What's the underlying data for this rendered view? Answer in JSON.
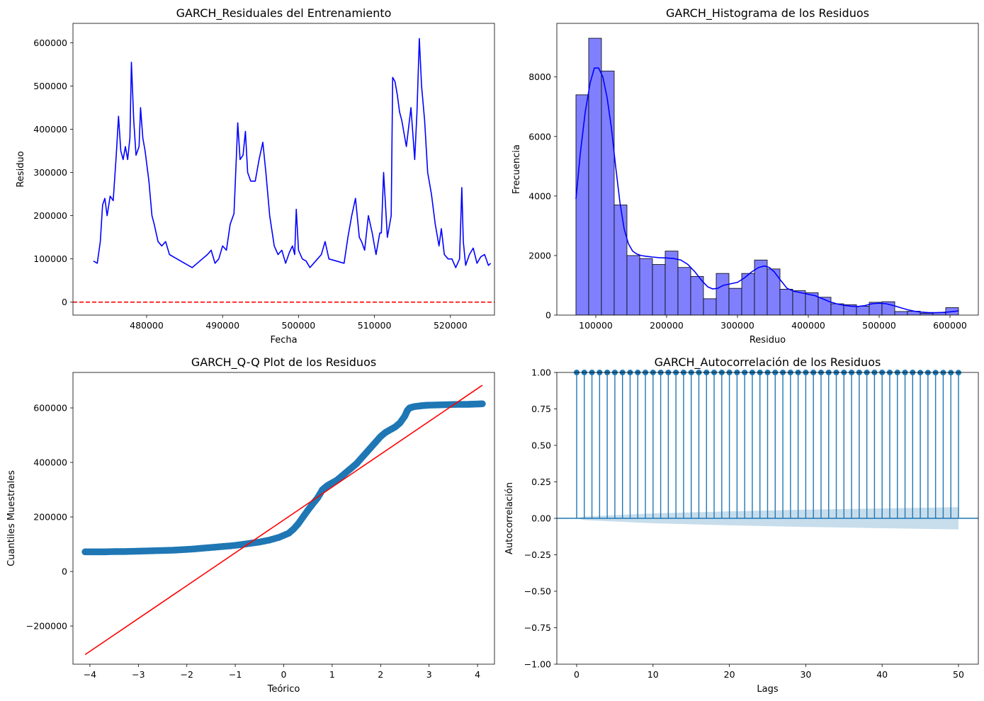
{
  "chart_data": [
    {
      "type": "line",
      "title": "GARCH_Residuales del Entrenamiento",
      "xlabel": "Fecha",
      "ylabel": "Residuo",
      "xlim": [
        470300,
        525800
      ],
      "ylim": [
        -30000,
        645000
      ],
      "xticks": [
        480000,
        490000,
        500000,
        510000,
        520000
      ],
      "yticks": [
        0,
        100000,
        200000,
        300000,
        400000,
        500000,
        600000
      ],
      "series": [
        {
          "color": "#0000ff",
          "x": [
            473000,
            473500,
            473900,
            474200,
            474500,
            474800,
            475200,
            475600,
            476000,
            476300,
            476600,
            476900,
            477200,
            477500,
            477800,
            478000,
            478300,
            478600,
            479000,
            479200,
            479500,
            479800,
            480300,
            480700,
            481000,
            481500,
            482000,
            482500,
            483000,
            484000,
            485000,
            486000,
            487000,
            488000,
            488500,
            489000,
            489500,
            490000,
            490500,
            491000,
            491500,
            491800,
            492000,
            492300,
            492700,
            493000,
            493300,
            493700,
            494300,
            494800,
            495300,
            495700,
            496200,
            496800,
            497300,
            497800,
            498300,
            498800,
            499200,
            499500,
            499700,
            500000,
            500500,
            501000,
            501500,
            502000,
            502500,
            503000,
            503500,
            504000,
            505000,
            506000,
            506500,
            507000,
            507500,
            508000,
            508300,
            508700,
            509200,
            509700,
            510200,
            510700,
            510900,
            511200,
            511700,
            512200,
            512400,
            512700,
            513000,
            513300,
            513600,
            514200,
            514800,
            515300,
            515600,
            515900,
            516200,
            516600,
            517000,
            517500,
            518000,
            518500,
            518800,
            519200,
            519700,
            520200,
            520700,
            521200,
            521500,
            521700,
            522000,
            522500,
            523000,
            523500,
            524000,
            524500,
            525000,
            525300
          ],
          "y": [
            95000,
            90000,
            140000,
            225000,
            240000,
            200000,
            245000,
            235000,
            340000,
            430000,
            350000,
            330000,
            360000,
            330000,
            380000,
            555000,
            420000,
            340000,
            360000,
            450000,
            380000,
            350000,
            280000,
            200000,
            180000,
            140000,
            130000,
            140000,
            110000,
            100000,
            90000,
            80000,
            95000,
            110000,
            120000,
            90000,
            100000,
            130000,
            120000,
            180000,
            205000,
            330000,
            415000,
            330000,
            340000,
            395000,
            300000,
            280000,
            280000,
            330000,
            370000,
            300000,
            200000,
            130000,
            110000,
            120000,
            90000,
            115000,
            130000,
            110000,
            215000,
            120000,
            100000,
            95000,
            80000,
            90000,
            100000,
            110000,
            140000,
            100000,
            95000,
            90000,
            150000,
            200000,
            240000,
            150000,
            140000,
            120000,
            200000,
            160000,
            110000,
            160000,
            160000,
            300000,
            150000,
            200000,
            520000,
            510000,
            480000,
            440000,
            420000,
            360000,
            450000,
            330000,
            440000,
            610000,
            500000,
            420000,
            300000,
            250000,
            180000,
            130000,
            170000,
            110000,
            100000,
            100000,
            80000,
            100000,
            265000,
            140000,
            85000,
            110000,
            125000,
            90000,
            105000,
            110000,
            85000,
            90000
          ]
        },
        {
          "name": "",
          "type": "hline",
          "color": "#ff0000",
          "style": "dashed",
          "y": 0
        }
      ]
    },
    {
      "type": "bar",
      "title": "GARCH_Histograma de los Residuos",
      "xlabel": "Residuo",
      "ylabel": "Frecuencia",
      "xlim": [
        45000,
        640000
      ],
      "ylim": [
        0,
        9800
      ],
      "xticks": [
        100000,
        200000,
        300000,
        400000,
        500000,
        600000
      ],
      "yticks": [
        0,
        2000,
        4000,
        6000,
        8000
      ],
      "bin_edges": [
        72000,
        90000,
        108000,
        126000,
        144000,
        162000,
        180000,
        198000,
        216000,
        234000,
        252000,
        270000,
        288000,
        306000,
        324000,
        342000,
        360000,
        378000,
        396000,
        414000,
        432000,
        450000,
        468000,
        486000,
        504000,
        522000,
        540000,
        558000,
        576000,
        594000,
        612000
      ],
      "values": [
        7400,
        9300,
        8200,
        3700,
        2000,
        1900,
        1700,
        2150,
        1600,
        1300,
        550,
        1400,
        900,
        1400,
        1850,
        1550,
        870,
        820,
        750,
        600,
        380,
        350,
        300,
        430,
        450,
        120,
        130,
        60,
        80,
        250
      ],
      "bar_color": "#8080ff",
      "kde": {
        "color": "#0000ff",
        "x": [
          72000,
          78000,
          85000,
          92000,
          98000,
          104000,
          110000,
          116000,
          122000,
          128000,
          134000,
          140000,
          146000,
          152000,
          158000,
          164000,
          170000,
          180000,
          190000,
          200000,
          210000,
          220000,
          230000,
          240000,
          250000,
          258000,
          265000,
          272000,
          280000,
          290000,
          300000,
          310000,
          320000,
          330000,
          338000,
          345000,
          352000,
          360000,
          370000,
          380000,
          390000,
          400000,
          410000,
          420000,
          430000,
          440000,
          450000,
          460000,
          470000,
          480000,
          490000,
          500000,
          510000,
          520000,
          530000,
          540000,
          550000,
          560000,
          570000,
          580000,
          590000,
          600000,
          612000
        ],
        "y": [
          3900,
          5400,
          6800,
          7800,
          8300,
          8300,
          8000,
          7300,
          6300,
          5000,
          3800,
          2900,
          2400,
          2150,
          2050,
          2000,
          1980,
          1950,
          1930,
          1920,
          1900,
          1850,
          1700,
          1450,
          1150,
          950,
          880,
          900,
          1000,
          1050,
          1100,
          1250,
          1450,
          1600,
          1650,
          1600,
          1450,
          1200,
          900,
          800,
          750,
          700,
          650,
          550,
          450,
          380,
          330,
          300,
          290,
          320,
          380,
          400,
          380,
          320,
          250,
          180,
          130,
          100,
          80,
          80,
          90,
          110,
          140
        ]
      }
    },
    {
      "type": "scatter",
      "title": "GARCH_Q-Q Plot de los Residuos",
      "xlabel": "Teórico",
      "ylabel": "Cuantiles Muestrales",
      "xlim": [
        -4.35,
        4.35
      ],
      "ylim": [
        -340000,
        730000
      ],
      "xticks": [
        -4,
        -3,
        -2,
        -1,
        0,
        1,
        2,
        3,
        4
      ],
      "yticks": [
        -200000,
        0,
        200000,
        400000,
        600000
      ],
      "point_color": "#1f77b4",
      "points": {
        "x": [
          -4.1,
          -3.9,
          -3.7,
          -3.5,
          -3.3,
          -3.1,
          -2.9,
          -2.7,
          -2.5,
          -2.3,
          -2.1,
          -1.9,
          -1.7,
          -1.5,
          -1.3,
          -1.1,
          -0.9,
          -0.7,
          -0.5,
          -0.3,
          -0.1,
          0.1,
          0.2,
          0.3,
          0.4,
          0.5,
          0.6,
          0.7,
          0.75,
          0.8,
          0.9,
          1.0,
          1.1,
          1.2,
          1.3,
          1.4,
          1.5,
          1.6,
          1.7,
          1.8,
          1.9,
          2.0,
          2.1,
          2.2,
          2.3,
          2.4,
          2.5,
          2.55,
          2.6,
          2.7,
          2.8,
          2.9,
          3.0,
          3.2,
          3.4,
          3.6,
          3.8,
          3.95,
          4.1
        ],
        "y": [
          72000,
          72000,
          72000,
          73000,
          73000,
          74000,
          75000,
          76000,
          77000,
          78000,
          80000,
          82000,
          85000,
          88000,
          91000,
          94000,
          98000,
          103000,
          108000,
          115000,
          125000,
          140000,
          155000,
          175000,
          200000,
          225000,
          248000,
          270000,
          285000,
          300000,
          315000,
          325000,
          335000,
          350000,
          365000,
          380000,
          395000,
          415000,
          435000,
          455000,
          475000,
          495000,
          510000,
          520000,
          530000,
          545000,
          570000,
          590000,
          600000,
          605000,
          607000,
          609000,
          610000,
          611000,
          612000,
          613000,
          613000,
          614000,
          615000
        ]
      },
      "reference_line": {
        "color": "#ff0000",
        "x": [
          -4.1,
          4.1
        ],
        "y": [
          -305000,
          683000
        ]
      }
    },
    {
      "type": "bar",
      "title": "GARCH_Autocorrelación de los Residuos",
      "xlabel": "Lags",
      "ylabel": "Autocorrelación",
      "xlim": [
        -2.6,
        52.6
      ],
      "ylim": [
        -1.0,
        1.0
      ],
      "xticks": [
        0,
        10,
        20,
        30,
        40,
        50
      ],
      "yticks": [
        -1.0,
        -0.75,
        -0.5,
        -0.25,
        0.0,
        0.25,
        0.5,
        0.75,
        1.0
      ],
      "lags": [
        0,
        1,
        2,
        3,
        4,
        5,
        6,
        7,
        8,
        9,
        10,
        11,
        12,
        13,
        14,
        15,
        16,
        17,
        18,
        19,
        20,
        21,
        22,
        23,
        24,
        25,
        26,
        27,
        28,
        29,
        30,
        31,
        32,
        33,
        34,
        35,
        36,
        37,
        38,
        39,
        40,
        41,
        42,
        43,
        44,
        45,
        46,
        47,
        48,
        49,
        50
      ],
      "values": [
        1.0,
        1.0,
        1.0,
        1.0,
        1.0,
        1.0,
        1.0,
        1.0,
        1.0,
        1.0,
        1.0,
        1.0,
        1.0,
        1.0,
        1.0,
        1.0,
        1.0,
        1.0,
        1.0,
        1.0,
        1.0,
        1.0,
        1.0,
        1.0,
        1.0,
        1.0,
        1.0,
        1.0,
        1.0,
        1.0,
        1.0,
        1.0,
        1.0,
        1.0,
        1.0,
        1.0,
        1.0,
        1.0,
        1.0,
        1.0,
        1.0,
        1.0,
        1.0,
        1.0,
        1.0,
        0.999,
        0.999,
        0.999,
        0.999,
        0.999,
        0.999
      ],
      "stem_color": "#1f77b4",
      "confidence_band": {
        "color": "#1f77b4",
        "lags": [
          1,
          10,
          20,
          30,
          40,
          50
        ],
        "halfwidth": [
          0.012,
          0.034,
          0.048,
          0.059,
          0.068,
          0.076
        ]
      }
    }
  ]
}
